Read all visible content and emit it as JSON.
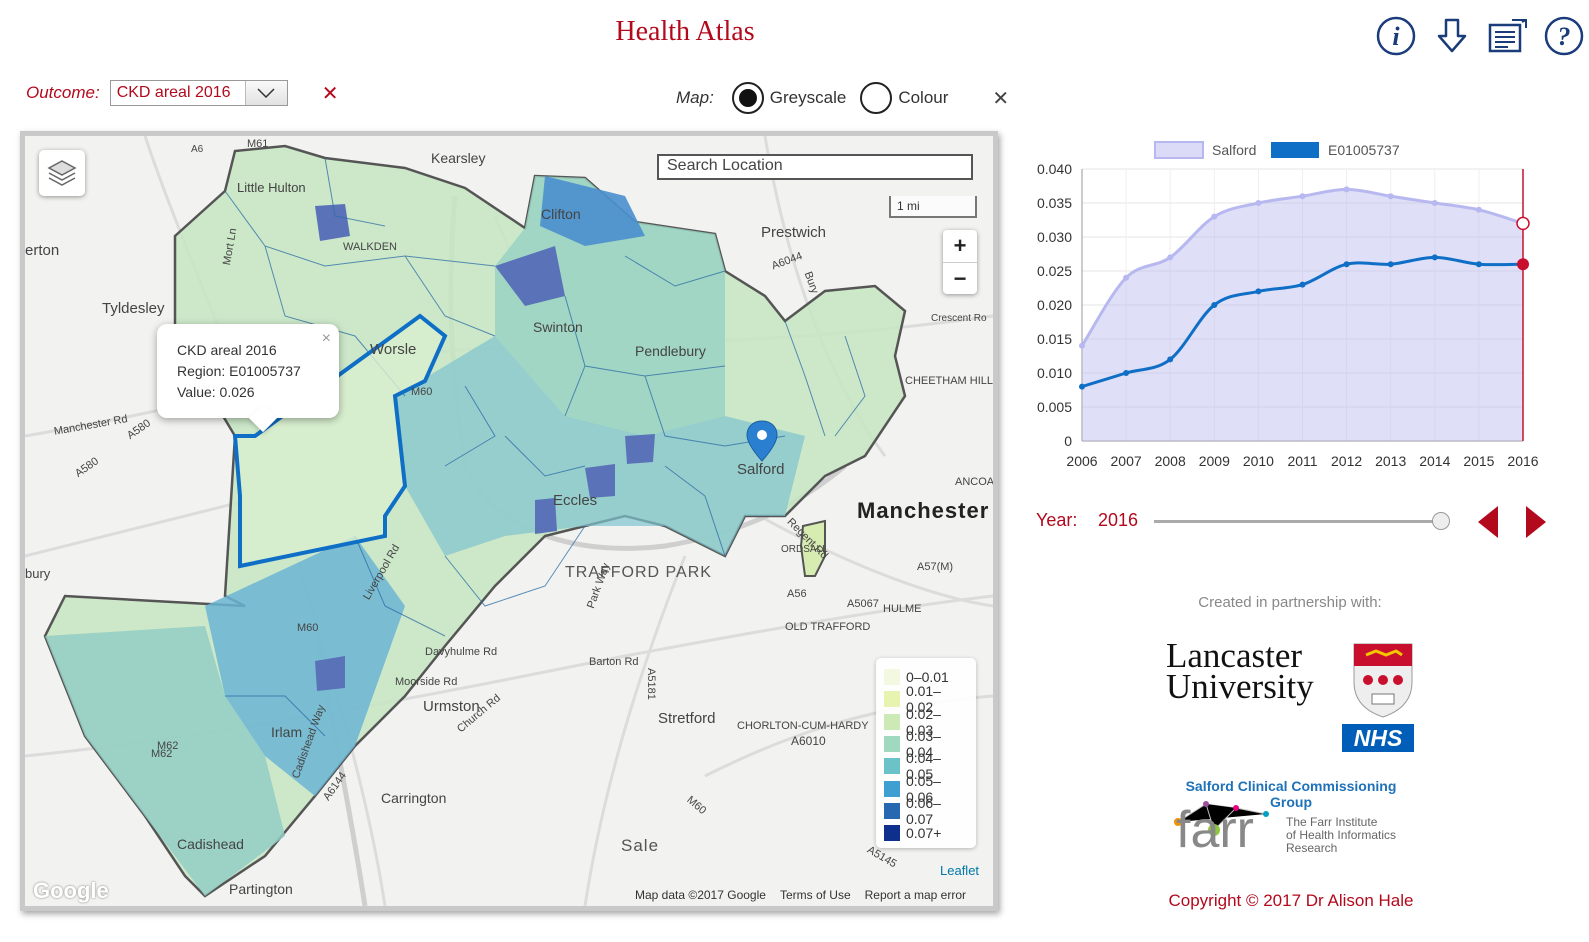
{
  "header": {
    "title": "Health Atlas",
    "icons": [
      "info-icon",
      "download-icon",
      "report-icon",
      "help-icon"
    ]
  },
  "outcome": {
    "label": "Outcome:",
    "selected": "CKD areal 2016",
    "clear_symbol": "✕"
  },
  "map_mode": {
    "label": "Map:",
    "options": [
      {
        "label": "Greyscale",
        "checked": true
      },
      {
        "label": "Colour",
        "checked": false
      }
    ],
    "close_symbol": "✕"
  },
  "map": {
    "search_placeholder": "Search Location",
    "scale_label": "1 mi",
    "zoom_in": "+",
    "zoom_out": "−",
    "popup": {
      "title": "CKD areal 2016",
      "region": "Region: E01005737",
      "value": "Value: 0.026",
      "close": "×"
    },
    "legend": [
      {
        "label": "0–0.01",
        "color": "#f3f9e0"
      },
      {
        "label": "0.01–0.02",
        "color": "#e6f4b0"
      },
      {
        "label": "0.02–0.03",
        "color": "#cdeab6"
      },
      {
        "label": "0.03–0.04",
        "color": "#a1d8c0"
      },
      {
        "label": "0.04–0.05",
        "color": "#6bc3c7"
      },
      {
        "label": "0.05–0.06",
        "color": "#3e9fd0"
      },
      {
        "label": "0.06–0.07",
        "color": "#2768b1"
      },
      {
        "label": "0.07+",
        "color": "#0e2f8b"
      }
    ],
    "leaflet": "Leaflet",
    "attribution": [
      "Map data ©2017 Google",
      "Terms of Use",
      "Report a map error"
    ],
    "google": "Google",
    "places": [
      {
        "text": "Kearsley"
      },
      {
        "text": "Prestwich"
      },
      {
        "text": "Tyldesley"
      },
      {
        "text": "erton"
      },
      {
        "text": "Worsle"
      },
      {
        "text": "Swinton"
      },
      {
        "text": "Pendlebury"
      },
      {
        "text": "Clifton"
      },
      {
        "text": "Little Hulton"
      },
      {
        "text": "WALKDEN"
      },
      {
        "text": "Eccles"
      },
      {
        "text": "Salford"
      },
      {
        "text": "Manchester"
      },
      {
        "text": "TRAFFORD PARK"
      },
      {
        "text": "Urmston"
      },
      {
        "text": "Stretford"
      },
      {
        "text": "Carrington"
      },
      {
        "text": "Sale"
      },
      {
        "text": "Partington"
      },
      {
        "text": "Cadishead"
      },
      {
        "text": "Irlam"
      },
      {
        "text": "bury"
      },
      {
        "text": "CHEETHAM HILL"
      },
      {
        "text": "ANCOA"
      },
      {
        "text": "ORDSALL"
      },
      {
        "text": "HULME"
      },
      {
        "text": "OLD TRAFFORD"
      },
      {
        "text": "CHORLTON-CUM-HARDY"
      },
      {
        "text": "Manchester Rd"
      },
      {
        "text": "A580"
      },
      {
        "text": "A580"
      },
      {
        "text": "M60"
      },
      {
        "text": "M61"
      },
      {
        "text": "A6"
      },
      {
        "text": "M62"
      },
      {
        "text": "M60"
      },
      {
        "text": "A6010"
      },
      {
        "text": "Crescent Ro"
      },
      {
        "text": "A57(M)"
      },
      {
        "text": "A56"
      },
      {
        "text": "A5067"
      },
      {
        "text": "Davyhulme Rd"
      },
      {
        "text": "Moorside Rd"
      },
      {
        "text": "Barton Rd"
      },
      {
        "text": "Church Rd"
      },
      {
        "text": "Liverpool Rd"
      },
      {
        "text": "Park Way"
      },
      {
        "text": "Cadishead Way"
      },
      {
        "text": "A6144"
      },
      {
        "text": "M60"
      },
      {
        "text": "A5145"
      },
      {
        "text": "A5181"
      },
      {
        "text": "Mort Ln"
      },
      {
        "text": "Regent Rd"
      },
      {
        "text": "A6044"
      },
      {
        "text": "Bury"
      },
      {
        "text": "M62"
      }
    ]
  },
  "chart_data": {
    "type": "line",
    "x": [
      2006,
      2007,
      2008,
      2009,
      2010,
      2011,
      2012,
      2013,
      2014,
      2015,
      2016
    ],
    "series": [
      {
        "name": "Salford",
        "values": [
          0.014,
          0.024,
          0.027,
          0.033,
          0.035,
          0.036,
          0.037,
          0.036,
          0.035,
          0.034,
          0.032
        ],
        "color": "#b8b8f0",
        "style": "area"
      },
      {
        "name": "E01005737",
        "values": [
          0.008,
          0.01,
          0.012,
          0.02,
          0.022,
          0.023,
          0.026,
          0.026,
          0.027,
          0.026,
          0.026
        ],
        "color": "#0f6fc6",
        "style": "line"
      }
    ],
    "ylim": [
      0,
      0.04
    ],
    "yticks": [
      "0",
      "0.005",
      "0.010",
      "0.015",
      "0.020",
      "0.025",
      "0.030",
      "0.035",
      "0.040"
    ],
    "yticks_values": [
      0,
      0.005,
      0.01,
      0.015,
      0.02,
      0.025,
      0.03,
      0.035,
      0.04
    ],
    "selected_year": 2016,
    "grid": true,
    "legend_position": "top",
    "marker_color": "#c8102e"
  },
  "year_control": {
    "label": "Year:",
    "value": "2016",
    "slider_fraction": 1.0
  },
  "partners": {
    "created": "Created in partnership with:",
    "lancaster": [
      "Lancaster",
      "University"
    ],
    "nhs": "NHS",
    "ccg": "Salford Clinical Commissioning Group",
    "farr_word": "farr",
    "farr_inst": [
      "The Farr Institute",
      "of Health Informatics",
      "Research"
    ]
  },
  "footer": {
    "copyright": "Copyright © 2017 Dr Alison Hale"
  }
}
